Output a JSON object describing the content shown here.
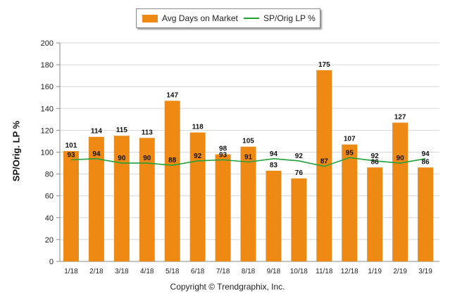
{
  "chart_data": {
    "type": "bar",
    "categories": [
      "1/18",
      "2/18",
      "3/18",
      "4/18",
      "5/18",
      "6/18",
      "7/18",
      "8/18",
      "9/18",
      "10/18",
      "11/18",
      "12/18",
      "1/19",
      "2/19",
      "3/19"
    ],
    "series": [
      {
        "name": "Avg Days on Market",
        "type": "bar",
        "color": "#ee8a14",
        "values": [
          101,
          114,
          115,
          113,
          147,
          118,
          98,
          105,
          83,
          76,
          175,
          107,
          86,
          127,
          86
        ]
      },
      {
        "name": "SP/Orig LP %",
        "type": "line",
        "color": "#22a03a",
        "values": [
          93,
          94,
          90,
          90,
          88,
          92,
          93,
          91,
          94,
          92,
          87,
          95,
          92,
          90,
          94
        ]
      }
    ],
    "ylabel": "SP/Orig. LP %",
    "xlabel": "",
    "ylim": [
      0,
      200
    ],
    "yticks": [
      0,
      20,
      40,
      60,
      80,
      100,
      120,
      140,
      160,
      180,
      200
    ],
    "grid": true,
    "legend_position": "top-center"
  },
  "footer": {
    "copyright": "Copyright © Trendgraphix, Inc."
  }
}
